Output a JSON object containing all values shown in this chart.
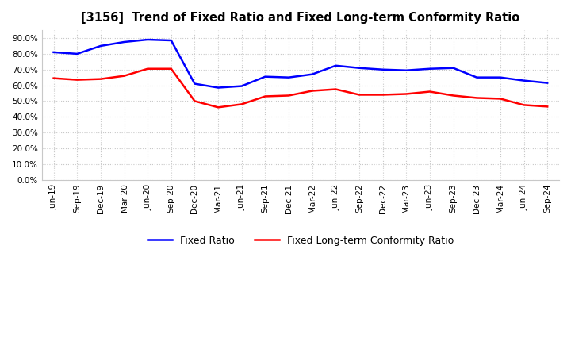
{
  "title": "[3156]  Trend of Fixed Ratio and Fixed Long-term Conformity Ratio",
  "x_labels": [
    "Jun-19",
    "Sep-19",
    "Dec-19",
    "Mar-20",
    "Jun-20",
    "Sep-20",
    "Dec-20",
    "Mar-21",
    "Jun-21",
    "Sep-21",
    "Dec-21",
    "Mar-22",
    "Jun-22",
    "Sep-22",
    "Dec-22",
    "Mar-23",
    "Jun-23",
    "Sep-23",
    "Dec-23",
    "Mar-24",
    "Jun-24",
    "Sep-24"
  ],
  "fixed_ratio": [
    81.0,
    80.0,
    85.0,
    87.5,
    89.0,
    88.5,
    61.0,
    58.5,
    59.5,
    65.5,
    65.0,
    67.0,
    72.5,
    71.0,
    70.0,
    69.5,
    70.5,
    71.0,
    65.0,
    65.0,
    63.0,
    61.5
  ],
  "fixed_lt_ratio": [
    64.5,
    63.5,
    64.0,
    66.0,
    70.5,
    70.5,
    50.0,
    46.0,
    48.0,
    53.0,
    53.5,
    56.5,
    57.5,
    54.0,
    54.0,
    54.5,
    56.0,
    53.5,
    52.0,
    51.5,
    47.5,
    46.5
  ],
  "fixed_ratio_color": "#0000FF",
  "fixed_lt_ratio_color": "#FF0000",
  "ylim": [
    0,
    95
  ],
  "yticks": [
    0,
    10,
    20,
    30,
    40,
    50,
    60,
    70,
    80,
    90
  ],
  "background_color": "#FFFFFF",
  "grid_color": "#C8C8C8",
  "legend_fixed": "Fixed Ratio",
  "legend_lt": "Fixed Long-term Conformity Ratio"
}
